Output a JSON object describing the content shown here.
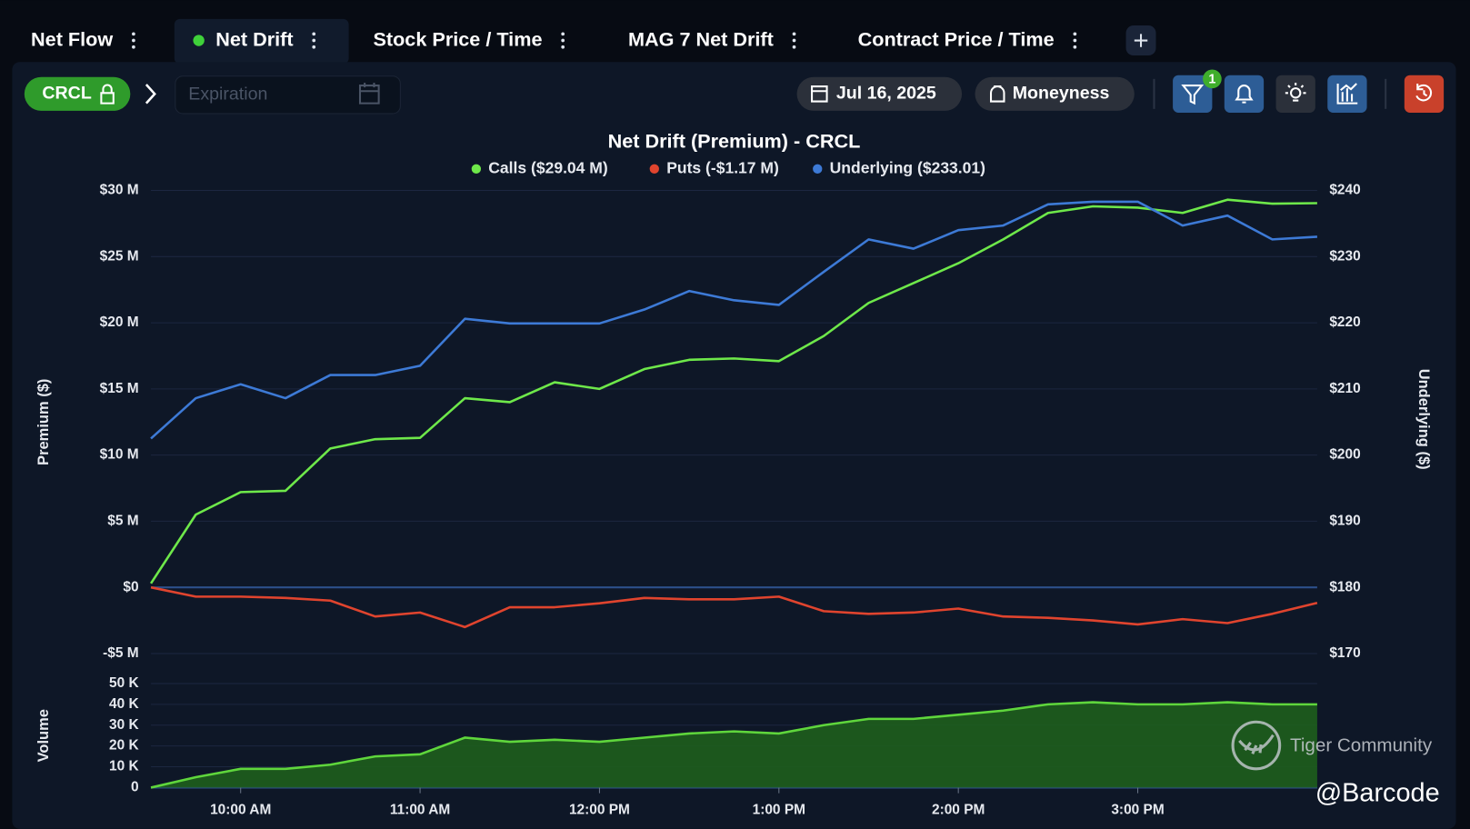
{
  "tabs": [
    "Net Flow",
    "Net Drift",
    "Stock Price / Time",
    "MAG 7 Net Drift",
    "Contract Price / Time"
  ],
  "active_tab": 1,
  "toolbar": {
    "symbol": "CRCL",
    "expiration": "Expiration",
    "date": "Jul 16, 2025",
    "moneyness": "Moneyness",
    "filter_badge": "1"
  },
  "chart_data": [
    {
      "type": "line",
      "title": "Net Drift (Premium) - CRCL",
      "y_label": "Premium ($)",
      "y2_label": "Underlying ($)",
      "x": [
        "09:30",
        "09:45",
        "10:00",
        "10:15",
        "10:30",
        "10:45",
        "11:00",
        "11:15",
        "11:30",
        "11:45",
        "12:00",
        "12:15",
        "12:30",
        "12:45",
        "13:00",
        "13:15",
        "13:30",
        "13:45",
        "14:00",
        "14:15",
        "14:30",
        "14:45",
        "15:00",
        "15:15",
        "15:30",
        "15:45",
        "16:00"
      ],
      "xlim": [
        "09:30",
        "16:00"
      ],
      "ylim": [
        -5,
        30
      ],
      "yticks": [
        {
          "value": 30,
          "label": "$30 M"
        },
        {
          "value": 25,
          "label": "$25 M"
        },
        {
          "value": 20,
          "label": "$20 M"
        },
        {
          "value": 15,
          "label": "$15 M"
        },
        {
          "value": 10,
          "label": "$10 M"
        },
        {
          "value": 5,
          "label": "$5 M"
        },
        {
          "value": 0,
          "label": "$0"
        },
        {
          "value": -5,
          "label": "-$5 M"
        }
      ],
      "y2lim": [
        170,
        240
      ],
      "y2ticks": [
        {
          "value": 240,
          "label": "$240"
        },
        {
          "value": 230,
          "label": "$230"
        },
        {
          "value": 220,
          "label": "$220"
        },
        {
          "value": 210,
          "label": "$210"
        },
        {
          "value": 200,
          "label": "$200"
        },
        {
          "value": 190,
          "label": "$190"
        },
        {
          "value": 180,
          "label": "$180"
        },
        {
          "value": 170,
          "label": "$170"
        }
      ],
      "grid": true,
      "series": [
        {
          "name": "Calls ($29.04 M)",
          "color": "#6ee84a",
          "values": [
            0.3,
            5.5,
            7.2,
            7.3,
            10.5,
            11.2,
            11.3,
            14.3,
            14,
            15.5,
            15,
            16.5,
            17.2,
            17.3,
            17.1,
            19,
            21.5,
            23,
            24.5,
            26.3,
            28.3,
            28.8,
            28.7,
            28.3,
            29.3,
            29,
            29.04
          ]
        },
        {
          "name": "Puts (-$1.17 M)",
          "color": "#e0442e",
          "values": [
            0,
            -0.7,
            -0.7,
            -0.8,
            -1,
            -2.2,
            -1.9,
            -3,
            -1.5,
            -1.5,
            -1.2,
            -0.8,
            -0.9,
            -0.9,
            -0.7,
            -1.8,
            -2,
            -1.9,
            -1.6,
            -2.2,
            -2.3,
            -2.5,
            -2.8,
            -2.4,
            -2.7,
            -2,
            -1.17
          ]
        },
        {
          "name": "Underlying ($233.01)",
          "color": "#3d7ad6",
          "axis": "y2",
          "values": [
            202.5,
            208.6,
            210.7,
            208.6,
            212.1,
            212.1,
            213.5,
            220.6,
            219.9,
            219.9,
            219.9,
            222,
            224.8,
            223.4,
            222.7,
            227.7,
            232.6,
            231.2,
            234,
            234.7,
            237.9,
            238.3,
            238.3,
            234.7,
            236.2,
            232.6,
            233.01
          ]
        }
      ]
    },
    {
      "type": "area",
      "y_label": "Volume",
      "x": [
        "09:30",
        "09:45",
        "10:00",
        "10:15",
        "10:30",
        "10:45",
        "11:00",
        "11:15",
        "11:30",
        "11:45",
        "12:00",
        "12:15",
        "12:30",
        "12:45",
        "13:00",
        "13:15",
        "13:30",
        "13:45",
        "14:00",
        "14:15",
        "14:30",
        "14:45",
        "15:00",
        "15:15",
        "15:30",
        "15:45",
        "16:00"
      ],
      "xlim": [
        "09:30",
        "16:00"
      ],
      "xticks": [
        {
          "value": "10:00",
          "label": "10:00 AM"
        },
        {
          "value": "11:00",
          "label": "11:00 AM"
        },
        {
          "value": "12:00",
          "label": "12:00 PM"
        },
        {
          "value": "13:00",
          "label": "1:00 PM"
        },
        {
          "value": "14:00",
          "label": "2:00 PM"
        },
        {
          "value": "15:00",
          "label": "3:00 PM"
        }
      ],
      "ylim": [
        0,
        50
      ],
      "yticks": [
        {
          "value": 50,
          "label": "50 K"
        },
        {
          "value": 40,
          "label": "40 K"
        },
        {
          "value": 30,
          "label": "30 K"
        },
        {
          "value": 20,
          "label": "20 K"
        },
        {
          "value": 10,
          "label": "10 K"
        },
        0
      ],
      "grid": true,
      "color": "#5fd63c",
      "values": [
        0,
        5,
        9,
        9,
        11,
        15,
        16,
        24,
        22,
        23,
        22,
        24,
        26,
        27,
        26,
        30,
        33,
        33,
        35,
        37,
        40,
        41,
        40,
        40,
        41,
        40,
        40
      ]
    }
  ],
  "watermark": "Tiger Community",
  "credit": "@Barcode"
}
